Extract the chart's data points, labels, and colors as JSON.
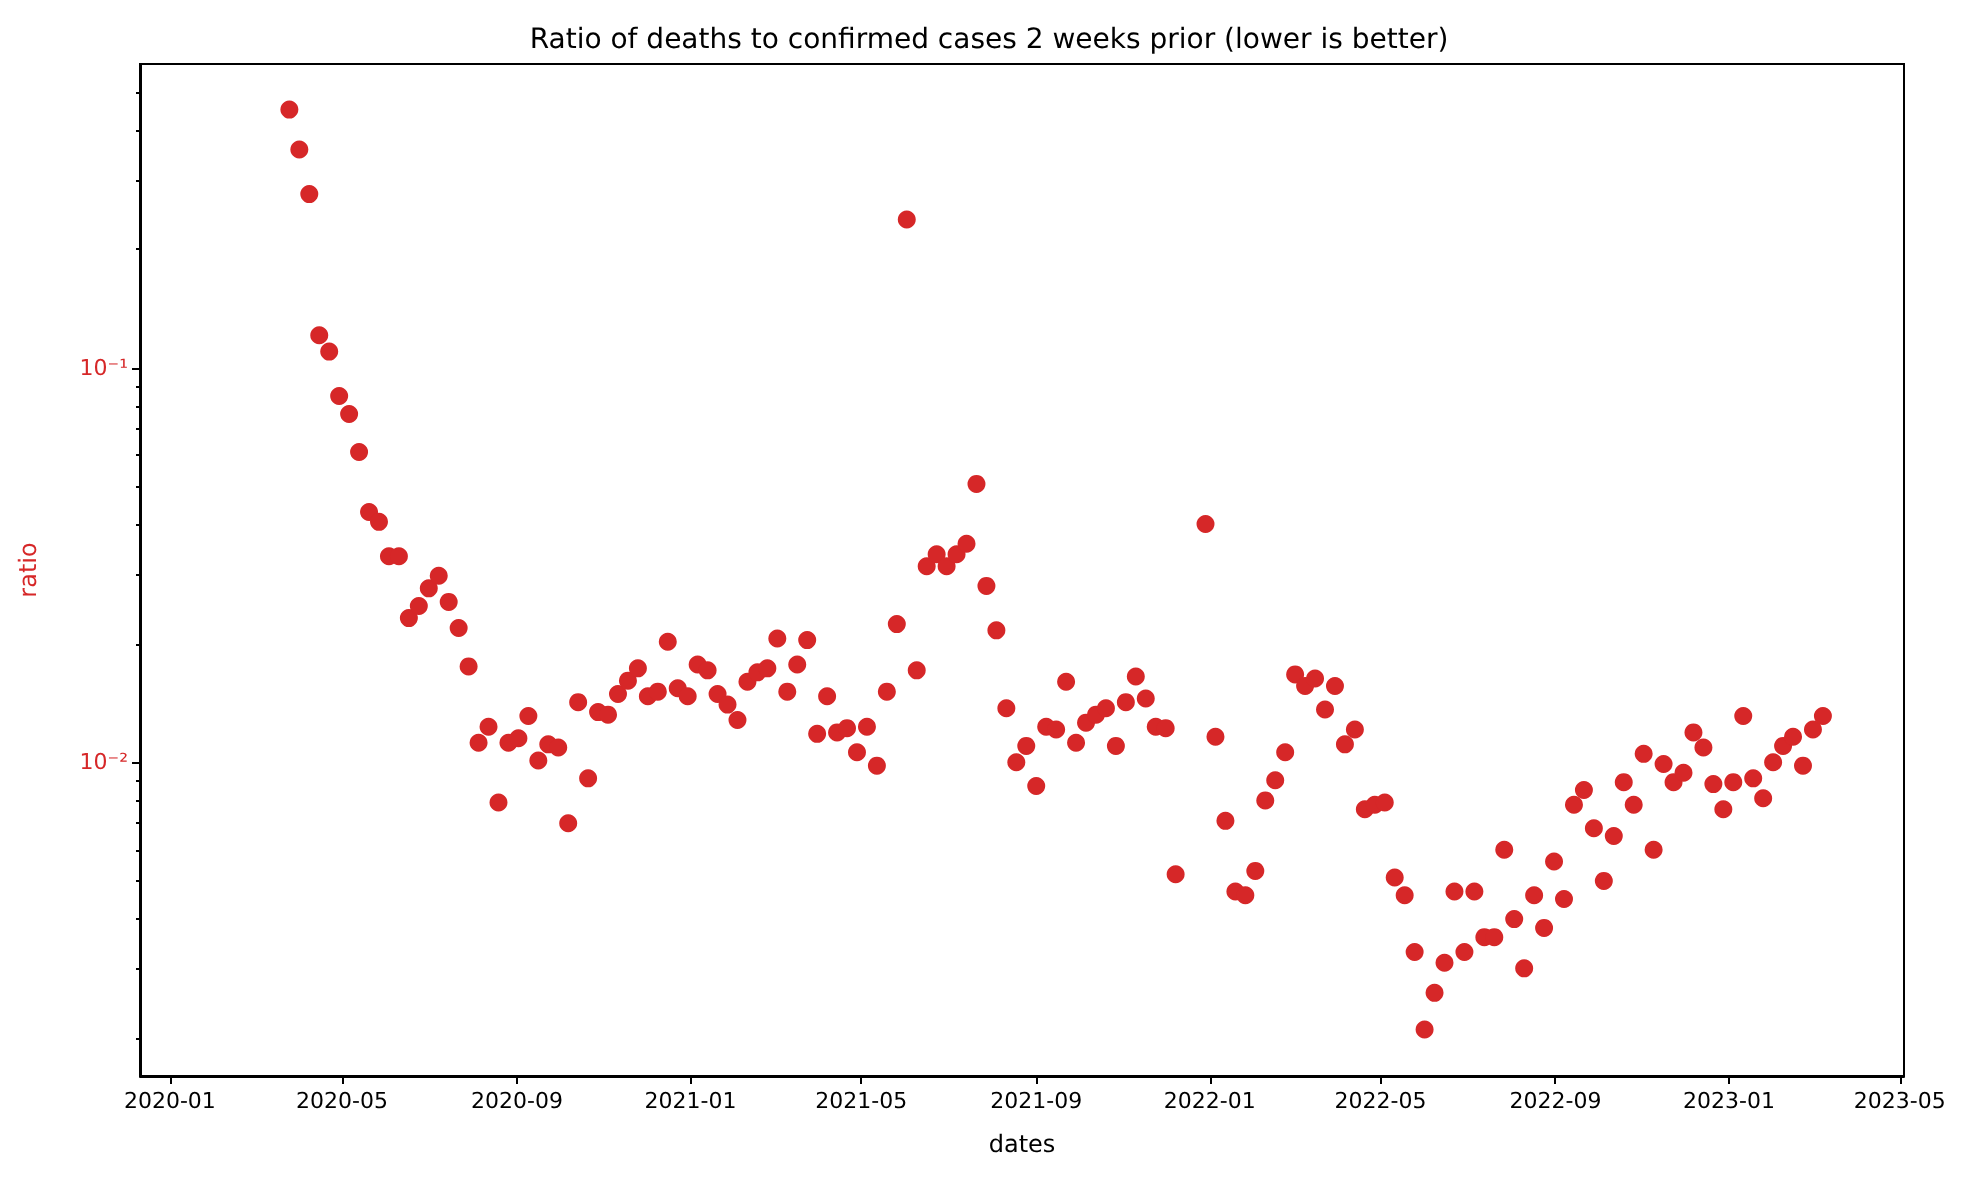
{
  "chart_data": {
    "type": "scatter",
    "title": "Ratio of deaths to confirmed cases 2 weeks prior (lower is better)",
    "xlabel": "dates",
    "ylabel": "ratio",
    "x": [
      "2020-03-25",
      "2020-04-01",
      "2020-04-08",
      "2020-04-15",
      "2020-04-22",
      "2020-04-29",
      "2020-05-06",
      "2020-05-13",
      "2020-05-20",
      "2020-05-27",
      "2020-06-03",
      "2020-06-10",
      "2020-06-17",
      "2020-06-24",
      "2020-07-01",
      "2020-07-08",
      "2020-07-15",
      "2020-07-22",
      "2020-07-29",
      "2020-08-05",
      "2020-08-12",
      "2020-08-19",
      "2020-08-26",
      "2020-09-02",
      "2020-09-09",
      "2020-09-16",
      "2020-09-23",
      "2020-09-30",
      "2020-10-07",
      "2020-10-14",
      "2020-10-21",
      "2020-10-28",
      "2020-11-04",
      "2020-11-11",
      "2020-11-18",
      "2020-11-25",
      "2020-12-02",
      "2020-12-09",
      "2020-12-16",
      "2020-12-23",
      "2020-12-30",
      "2021-01-06",
      "2021-01-13",
      "2021-01-20",
      "2021-01-27",
      "2021-02-03",
      "2021-02-10",
      "2021-02-17",
      "2021-02-24",
      "2021-03-03",
      "2021-03-10",
      "2021-03-17",
      "2021-03-24",
      "2021-03-31",
      "2021-04-07",
      "2021-04-14",
      "2021-04-21",
      "2021-04-28",
      "2021-05-05",
      "2021-05-12",
      "2021-05-19",
      "2021-05-26",
      "2021-06-02",
      "2021-06-09",
      "2021-06-16",
      "2021-06-23",
      "2021-06-30",
      "2021-07-07",
      "2021-07-14",
      "2021-07-21",
      "2021-07-28",
      "2021-08-04",
      "2021-08-11",
      "2021-08-18",
      "2021-08-25",
      "2021-09-01",
      "2021-09-08",
      "2021-09-15",
      "2021-09-22",
      "2021-09-29",
      "2021-10-06",
      "2021-10-13",
      "2021-10-20",
      "2021-10-27",
      "2021-11-03",
      "2021-11-10",
      "2021-11-17",
      "2021-11-24",
      "2021-12-01",
      "2021-12-08",
      "2021-12-29",
      "2022-01-05",
      "2022-01-12",
      "2022-01-19",
      "2022-01-26",
      "2022-02-02",
      "2022-02-09",
      "2022-02-16",
      "2022-02-23",
      "2022-03-02",
      "2022-03-09",
      "2022-03-16",
      "2022-03-23",
      "2022-03-30",
      "2022-04-06",
      "2022-04-13",
      "2022-04-20",
      "2022-04-27",
      "2022-05-04",
      "2022-05-11",
      "2022-05-18",
      "2022-05-25",
      "2022-06-01",
      "2022-06-08",
      "2022-06-15",
      "2022-06-22",
      "2022-06-29",
      "2022-07-06",
      "2022-07-13",
      "2022-07-20",
      "2022-07-27",
      "2022-08-03",
      "2022-08-10",
      "2022-08-17",
      "2022-08-24",
      "2022-08-31",
      "2022-09-07",
      "2022-09-14",
      "2022-09-21",
      "2022-09-28",
      "2022-10-05",
      "2022-10-12",
      "2022-10-19",
      "2022-10-26",
      "2022-11-02",
      "2022-11-09",
      "2022-11-16",
      "2022-11-23",
      "2022-11-30",
      "2022-12-07",
      "2022-12-14",
      "2022-12-21",
      "2022-12-28",
      "2023-01-04",
      "2023-01-11",
      "2023-01-18",
      "2023-01-25",
      "2023-02-01",
      "2023-02-08",
      "2023-02-15",
      "2023-02-22",
      "2023-03-01",
      "2023-03-08"
    ],
    "values": [
      0.452,
      0.358,
      0.276,
      0.121,
      0.11,
      0.0849,
      0.0764,
      0.0612,
      0.0431,
      0.0407,
      0.0333,
      0.0333,
      0.0232,
      0.0249,
      0.0276,
      0.0297,
      0.0255,
      0.0219,
      0.0175,
      0.0112,
      0.0123,
      0.0079,
      0.0112,
      0.0115,
      0.0131,
      0.0101,
      0.0111,
      0.0109,
      0.007,
      0.0142,
      0.0091,
      0.0134,
      0.0132,
      0.0149,
      0.0161,
      0.0173,
      0.0147,
      0.0151,
      0.0202,
      0.0154,
      0.0147,
      0.0177,
      0.0171,
      0.0149,
      0.014,
      0.0128,
      0.016,
      0.0169,
      0.0173,
      0.0206,
      0.0151,
      0.0177,
      0.0204,
      0.0118,
      0.0147,
      0.0119,
      0.0122,
      0.0106,
      0.0123,
      0.0098,
      0.0151,
      0.0224,
      0.238,
      0.0171,
      0.0314,
      0.0337,
      0.0314,
      0.0337,
      0.0358,
      0.0508,
      0.028,
      0.0216,
      0.0137,
      0.01,
      0.011,
      0.0087,
      0.0123,
      0.0121,
      0.016,
      0.0112,
      0.0126,
      0.0132,
      0.0137,
      0.011,
      0.0142,
      0.0165,
      0.0145,
      0.0123,
      0.0122,
      0.0052,
      0.0402,
      0.0116,
      0.0071,
      0.0047,
      0.0046,
      0.0053,
      0.008,
      0.009,
      0.0106,
      0.0167,
      0.0156,
      0.0163,
      0.0136,
      0.0156,
      0.0111,
      0.0121,
      0.0076,
      0.0078,
      0.0079,
      0.0051,
      0.0046,
      0.0033,
      0.0021,
      0.0026,
      0.0031,
      0.0047,
      0.0033,
      0.0047,
      0.0036,
      0.0036,
      0.006,
      0.004,
      0.003,
      0.0046,
      0.0038,
      0.0056,
      0.0045,
      0.0078,
      0.0085,
      0.0068,
      0.005,
      0.0065,
      0.0089,
      0.0078,
      0.0105,
      0.006,
      0.0099,
      0.0089,
      0.0094,
      0.0119,
      0.0109,
      0.0088,
      0.0076,
      0.0089,
      0.0131,
      0.0091,
      0.0081,
      0.01,
      0.011,
      0.0116,
      0.0098,
      0.0121,
      0.0131
    ],
    "color": "#d62728",
    "marker": "circle",
    "log": "y",
    "xlim": [
      "2019-12-11",
      "2023-05-04"
    ],
    "xticks": [
      "2020-01",
      "2020-05",
      "2020-09",
      "2021-01",
      "2021-05",
      "2021-09",
      "2022-01",
      "2022-05",
      "2022-09",
      "2023-01",
      "2023-05"
    ],
    "ylim": [
      0.0016,
      0.59
    ],
    "yticks": [
      {
        "value": 0.002,
        "label": null
      },
      {
        "value": 0.003,
        "label": null
      },
      {
        "value": 0.004,
        "label": null
      },
      {
        "value": 0.005,
        "label": null
      },
      {
        "value": 0.006,
        "label": null
      },
      {
        "value": 0.007,
        "label": null
      },
      {
        "value": 0.008,
        "label": null
      },
      {
        "value": 0.009,
        "label": null
      },
      {
        "value": 0.01,
        "label": "10⁻²"
      },
      {
        "value": 0.02,
        "label": null
      },
      {
        "value": 0.03,
        "label": null
      },
      {
        "value": 0.04,
        "label": null
      },
      {
        "value": 0.05,
        "label": null
      },
      {
        "value": 0.06,
        "label": null
      },
      {
        "value": 0.07,
        "label": null
      },
      {
        "value": 0.08,
        "label": null
      },
      {
        "value": 0.09,
        "label": null
      },
      {
        "value": 0.1,
        "label": "10⁻¹"
      },
      {
        "value": 0.2,
        "label": null
      },
      {
        "value": 0.3,
        "label": null
      },
      {
        "value": 0.4,
        "label": null
      },
      {
        "value": 0.5,
        "label": null
      }
    ]
  }
}
